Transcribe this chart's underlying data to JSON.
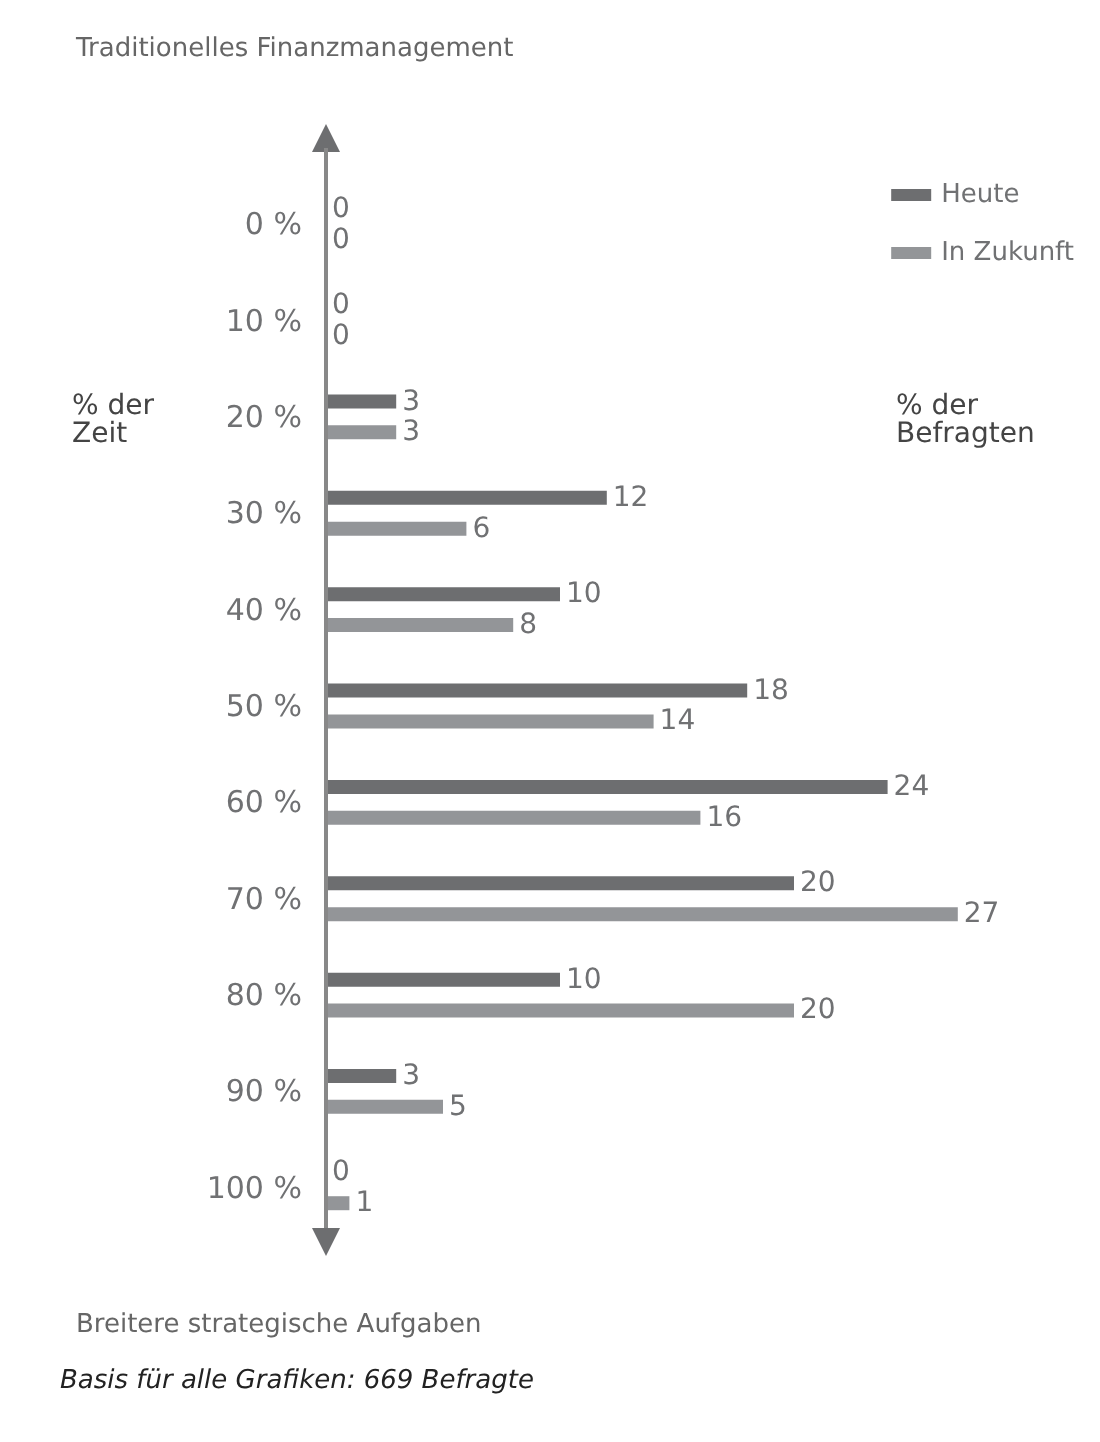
{
  "chart_data": {
    "type": "bar",
    "orientation": "horizontal",
    "ylabel": "% der Zeit",
    "xlabel": "% der Befragten",
    "categories": [
      "0 %",
      "10 %",
      "20 %",
      "30 %",
      "40 %",
      "50 %",
      "60 %",
      "70 %",
      "80 %",
      "90 %",
      "100 %"
    ],
    "series": [
      {
        "name": "Heute",
        "color": "#6d6e70",
        "values": [
          0,
          0,
          3,
          12,
          10,
          18,
          24,
          20,
          10,
          3,
          0
        ]
      },
      {
        "name": "In Zukunft",
        "color": "#939598",
        "values": [
          0,
          0,
          3,
          6,
          8,
          14,
          16,
          27,
          20,
          5,
          1
        ]
      }
    ],
    "data_labels": true,
    "legend": "top right",
    "grid": false,
    "annotations": [
      "Traditionelles Finanzmanagement",
      "Breitere strategische Aufgaben",
      "Basis für alle Grafiken: 669 Befragte"
    ]
  }
}
